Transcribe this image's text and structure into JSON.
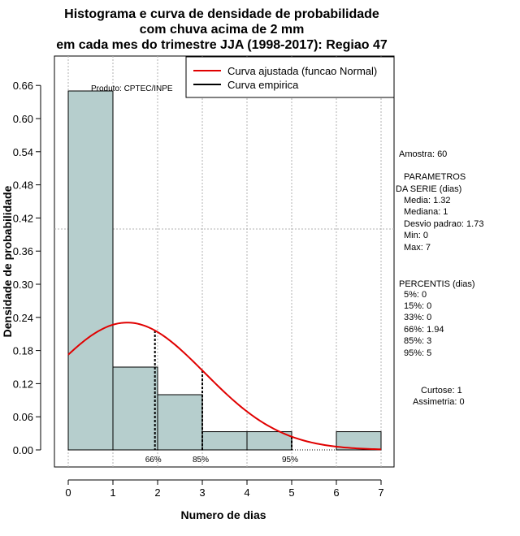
{
  "chart_data": {
    "type": "bar",
    "title": [
      "Histograma e curva de densidade de probabilidade",
      "com chuva acima de 2 mm",
      "em cada mes do trimestre JJA (1998-2017): Regiao 47"
    ],
    "xlabel": "Numero de dias",
    "ylabel": "Densidade de probabilidade",
    "xlim": [
      -0.2,
      7.3
    ],
    "ylim": [
      -0.03,
      0.72
    ],
    "xticks": [
      0,
      1,
      2,
      3,
      4,
      5,
      6,
      7
    ],
    "yticks": [
      0.0,
      0.06,
      0.12,
      0.18,
      0.24,
      0.3,
      0.36,
      0.42,
      0.48,
      0.54,
      0.6,
      0.66
    ],
    "ytick_labels": [
      "0.00",
      "0.06",
      "0.12",
      "0.18",
      "0.24",
      "0.30",
      "0.36",
      "0.42",
      "0.48",
      "0.54",
      "0.60",
      "0.66"
    ],
    "bins": [
      {
        "from": 0,
        "to": 1,
        "density": 0.65
      },
      {
        "from": 1,
        "to": 2,
        "density": 0.15
      },
      {
        "from": 2,
        "to": 3,
        "density": 0.1
      },
      {
        "from": 3,
        "to": 4,
        "density": 0.033
      },
      {
        "from": 4,
        "to": 5,
        "density": 0.033
      },
      {
        "from": 5,
        "to": 6,
        "density": 0.0
      },
      {
        "from": 6,
        "to": 7,
        "density": 0.033
      }
    ],
    "hline_y": 0.4,
    "normal_fit": {
      "mean": 1.32,
      "sd": 1.73,
      "x_from": 0,
      "x_to": 7
    },
    "percentile_lines": [
      {
        "label": "66%",
        "x": 1.94
      },
      {
        "label": "85%",
        "x": 3
      },
      {
        "label": "95%",
        "x": 5
      }
    ],
    "legend": [
      {
        "label": "Curva ajustada (funcao Normal)",
        "color": "#e00000"
      },
      {
        "label": "Curva empirica",
        "color": "#000000"
      }
    ],
    "annotation": "Produto: CPTEC/INPE",
    "colors": {
      "bar_fill": "#b6cecd",
      "fit_line": "#e00000",
      "grid": "#b0b0b0"
    }
  },
  "side_panel": {
    "sample": "Amostra: 60",
    "params_header_1": "PARAMETROS",
    "params_header_2": "DA SERIE (dias)",
    "media": "Media: 1.32",
    "mediana": "Mediana: 1",
    "desvio": "Desvio padrao: 1.73",
    "min": "Min: 0",
    "max": "Max: 7",
    "percentis_header": "PERCENTIS (dias)",
    "p5": "5%: 0",
    "p15": "15%: 0",
    "p33": "33%: 0",
    "p66": "66%: 1.94",
    "p85": "85%: 3",
    "p95": "95%: 5",
    "curtose": "Curtose: 1",
    "assimetria": "Assimetria: 0"
  }
}
